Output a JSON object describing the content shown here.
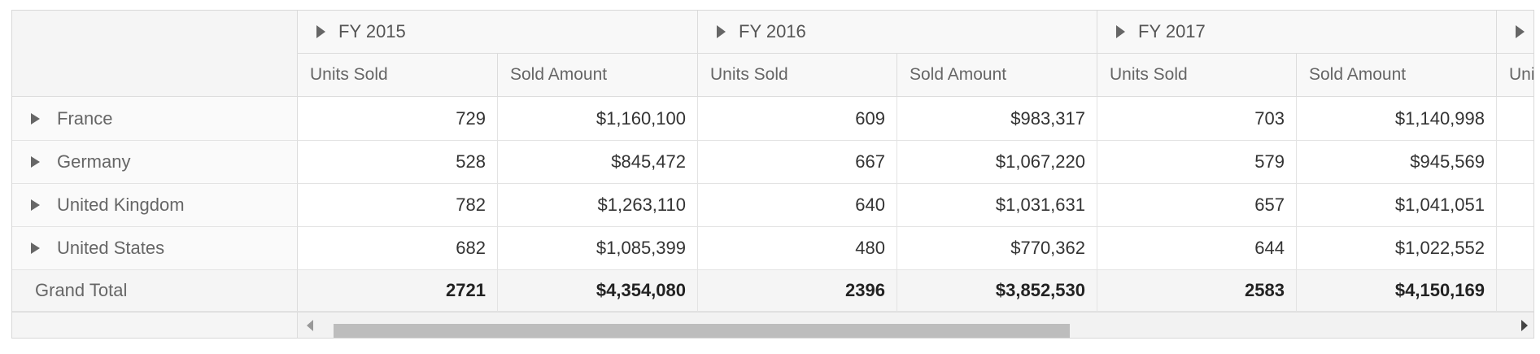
{
  "column_headers": [
    {
      "label": "FY 2015"
    },
    {
      "label": "FY 2016"
    },
    {
      "label": "FY 2017"
    },
    {
      "label": ""
    }
  ],
  "measure_headers": [
    "Units Sold",
    "Sold Amount",
    "Units Sold",
    "Sold Amount",
    "Units Sold",
    "Sold Amount",
    "Uni"
  ],
  "rows": [
    {
      "label": "France",
      "cells": [
        "729",
        "$1,160,100",
        "609",
        "$983,317",
        "703",
        "$1,140,998"
      ]
    },
    {
      "label": "Germany",
      "cells": [
        "528",
        "$845,472",
        "667",
        "$1,067,220",
        "579",
        "$945,569"
      ]
    },
    {
      "label": "United Kingdom",
      "cells": [
        "782",
        "$1,263,110",
        "640",
        "$1,031,631",
        "657",
        "$1,041,051"
      ]
    },
    {
      "label": "United States",
      "cells": [
        "682",
        "$1,085,399",
        "480",
        "$770,362",
        "644",
        "$1,022,552"
      ]
    }
  ],
  "grand_total": {
    "label": "Grand Total",
    "cells": [
      "2721",
      "$4,354,080",
      "2396",
      "$3,852,530",
      "2583",
      "$4,150,169"
    ]
  }
}
